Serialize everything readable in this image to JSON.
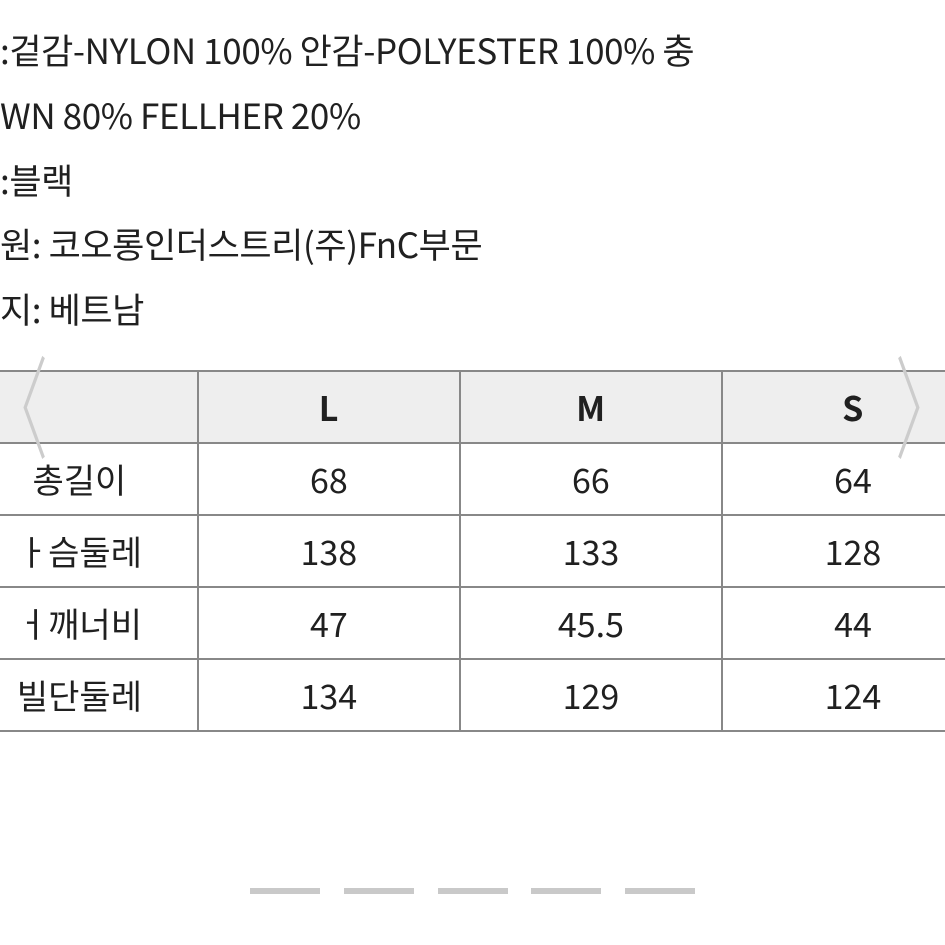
{
  "description": {
    "line1": ":겉감-NYLON 100% 안감-POLYESTER 100% 충",
    "line2": "WN 80% FELLHER 20%",
    "line3": ":블랙",
    "line4": "원: 코오롱인더스트리(주)FnC부문",
    "line5": "지: 베트남"
  },
  "table": {
    "headers": {
      "c0": "",
      "c1": "L",
      "c2": "M",
      "c3": "S"
    },
    "rows": [
      {
        "label": "총길이",
        "L": "68",
        "M": "66",
        "S": "64"
      },
      {
        "label": "ㅏ슴둘레",
        "L": "138",
        "M": "133",
        "S": "128"
      },
      "spacer_removed",
      {
        "label": "ㅓ깨너비",
        "L": "47",
        "M": "45.5",
        "S": "44"
      },
      {
        "label": "빌단둘레",
        "L": "134",
        "M": "129",
        "S": "124"
      }
    ],
    "border_color": "#888888",
    "header_bg": "#eeeeee",
    "cell_font_size": 34
  },
  "carousel": {
    "arrows": {
      "left": "〈",
      "right": "〉"
    },
    "dot_count": 5,
    "active_index": -1,
    "dot_color": "#c9c9c9"
  },
  "page_bg": "#ffffff",
  "text_color": "#202020"
}
